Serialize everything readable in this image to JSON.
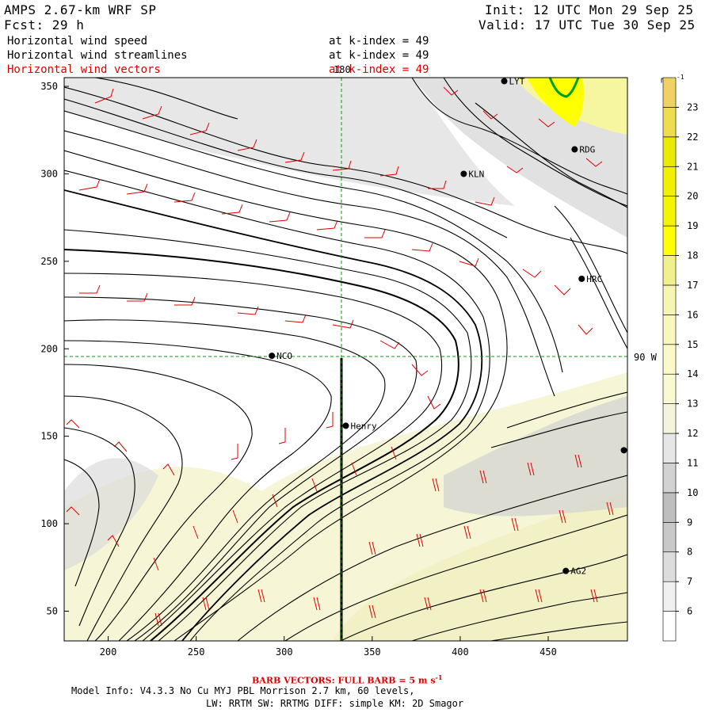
{
  "header": {
    "model_title": "AMPS 2.67-km WRF SP",
    "forecast": "Fcst:   29 h",
    "init": "Init: 12 UTC Mon 29 Sep 25",
    "valid": "Valid: 17 UTC Tue 30 Sep 25",
    "fields": [
      {
        "name": "Horizontal wind speed",
        "level": "at k-index =  49",
        "color": "#000000"
      },
      {
        "name": "Horizontal wind streamlines",
        "level": "at k-index =  49",
        "color": "#000000"
      },
      {
        "name": "Horizontal wind vectors",
        "level": "at k-index =  49",
        "color": "#e00000"
      }
    ]
  },
  "map": {
    "x_ticks": [
      "200",
      "250",
      "300",
      "350",
      "400",
      "450"
    ],
    "y_ticks": [
      "50",
      "100",
      "150",
      "200",
      "250",
      "300",
      "350"
    ],
    "x_range": [
      175,
      495
    ],
    "y_range": [
      33,
      355
    ],
    "meridian_label": "180",
    "parallel_label": "90 W",
    "stations": [
      {
        "name": "NCO",
        "x": 293,
        "y": 196
      },
      {
        "name": "Henry",
        "x": 335,
        "y": 156
      },
      {
        "name": "KLN",
        "x": 402,
        "y": 300
      },
      {
        "name": "RDG",
        "x": 465,
        "y": 314
      },
      {
        "name": "HRC",
        "x": 469,
        "y": 240
      },
      {
        "name": "AG2",
        "x": 460,
        "y": 73
      },
      {
        "name": "LYT",
        "x": 425,
        "y": 353
      },
      {
        "name": "",
        "x": 493,
        "y": 142
      }
    ],
    "colors": {
      "barb": "#e00000",
      "streamline": "#000000",
      "grid": "#00a000",
      "contour": "#00a000"
    }
  },
  "colorbar": {
    "unit_label": "m s",
    "unit_exp": "-1",
    "levels": [
      "6",
      "7",
      "8",
      "9",
      "10",
      "11",
      "12",
      "13",
      "14",
      "15",
      "16",
      "17",
      "18",
      "19",
      "20",
      "21",
      "22",
      "23"
    ],
    "colors": [
      "#ffffff",
      "#f0f0f0",
      "#dcdcdc",
      "#c8c8c8",
      "#bebebe",
      "#d2d2d2",
      "#e6e6e6",
      "#f4f4dc",
      "#fafad2",
      "#fafac8",
      "#f8f8be",
      "#f6f6b4",
      "#f0f08c",
      "#ffff00",
      "#f5f500",
      "#f0f000",
      "#eaea00",
      "#f0dc50",
      "#f0d264"
    ]
  },
  "footer": {
    "barb_note_prefix": "BARB VECTORS:  FULL BARB = 5 m s",
    "barb_note_exp": "-1",
    "model_info_line1": "Model Info: V4.3.3   No Cu   MYJ PBL  Morrison         2.7 km,  60 levels,",
    "model_info_line2": "LW: RRTM SW: RRTMG   DIFF: simple KM: 2D Smagor"
  }
}
